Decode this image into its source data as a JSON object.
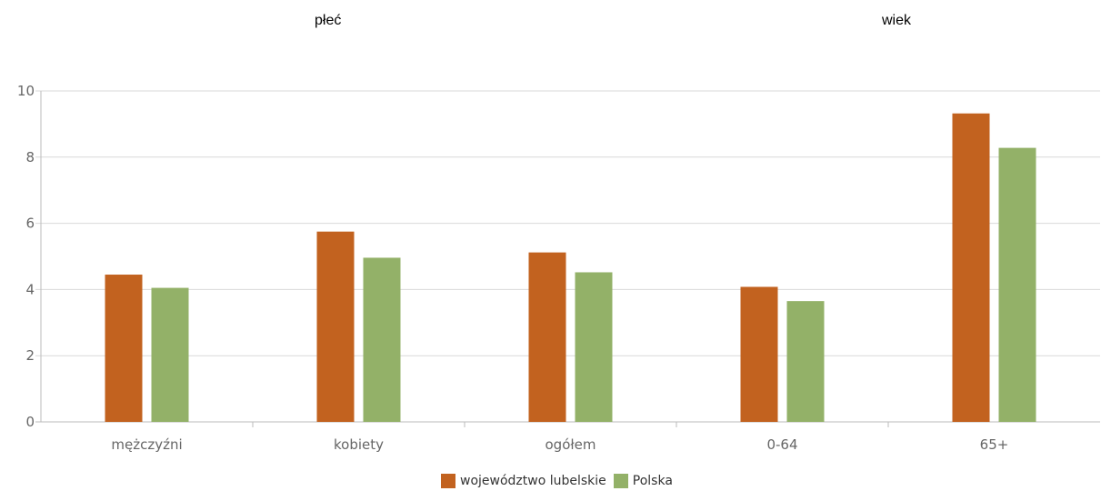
{
  "group_labels": [
    "płeć",
    "wiek"
  ],
  "colors": {
    "series_0": "#c2621f",
    "series_1": "#93b168",
    "grid": "#d9d9d9",
    "axis": "#bbbbbb"
  },
  "chart_data": {
    "type": "bar",
    "categories": [
      "mężczyźni",
      "kobiety",
      "ogółem",
      "0-64",
      "65+"
    ],
    "series": [
      {
        "name": "województwo lubelskie",
        "values": [
          4.45,
          5.75,
          5.12,
          4.08,
          9.32
        ]
      },
      {
        "name": "Polska",
        "values": [
          4.05,
          4.96,
          4.52,
          3.65,
          8.28
        ]
      }
    ],
    "y_ticks": [
      "0",
      "2",
      "4",
      "6",
      "8",
      "10"
    ],
    "ylim": [
      0,
      10
    ],
    "grid": true,
    "legend_position": "bottom-center"
  }
}
